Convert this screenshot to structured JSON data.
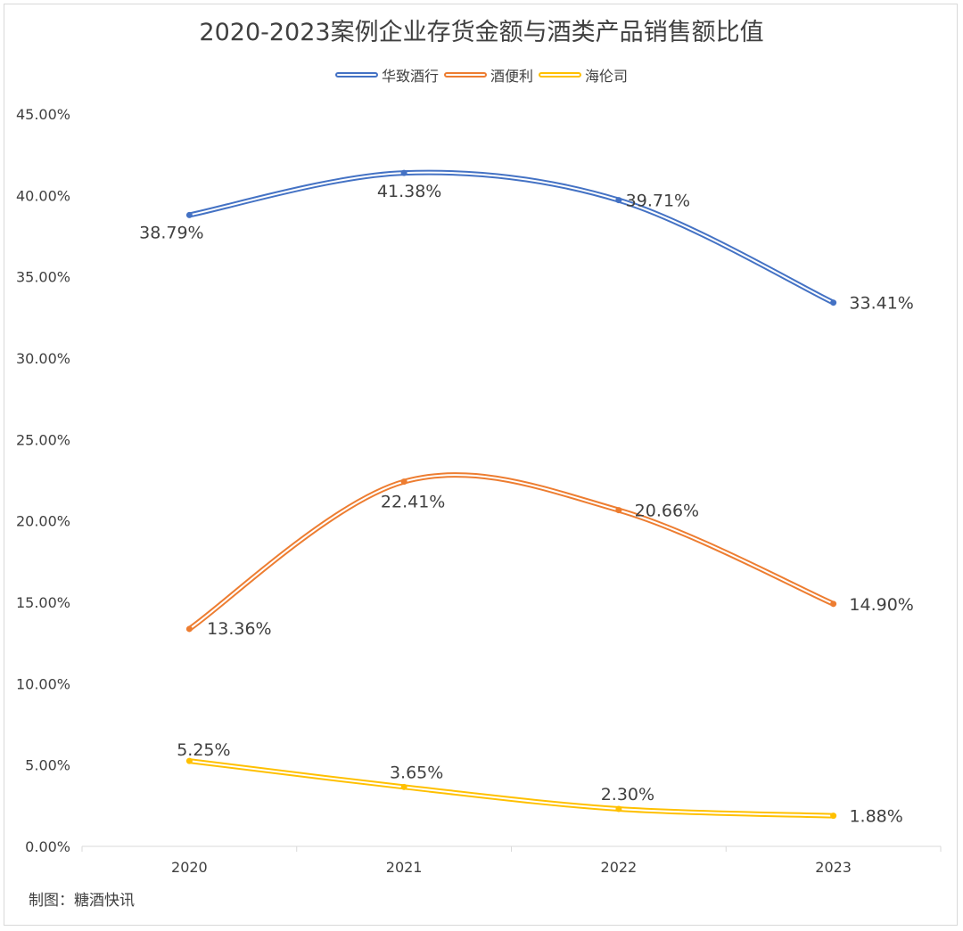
{
  "chart_data": {
    "type": "line",
    "title": "2020-2023案例企业存货金额与酒类产品销售额比值",
    "categories": [
      "2020",
      "2021",
      "2022",
      "2023"
    ],
    "series": [
      {
        "name": "华致酒行",
        "values": [
          38.79,
          41.38,
          39.71,
          33.41
        ],
        "labels": [
          "38.79%",
          "41.38%",
          "39.71%",
          "33.41%"
        ],
        "color": "#4472c4"
      },
      {
        "name": "酒便利",
        "values": [
          13.36,
          22.41,
          20.66,
          14.9
        ],
        "labels": [
          "13.36%",
          "22.41%",
          "20.66%",
          "14.90%"
        ],
        "color": "#ed7d31"
      },
      {
        "name": "海伦司",
        "values": [
          5.25,
          3.65,
          2.3,
          1.88
        ],
        "labels": [
          "5.25%",
          "3.65%",
          "2.30%",
          "1.88%"
        ],
        "color": "#ffc000"
      }
    ],
    "y_ticks": [
      "0.00%",
      "5.00%",
      "10.00%",
      "15.00%",
      "20.00%",
      "25.00%",
      "30.00%",
      "35.00%",
      "40.00%",
      "45.00%"
    ],
    "ylim": [
      0,
      45
    ],
    "smooth": true,
    "grid": false,
    "legend_position": "top"
  },
  "source": "制图：糖酒快讯"
}
